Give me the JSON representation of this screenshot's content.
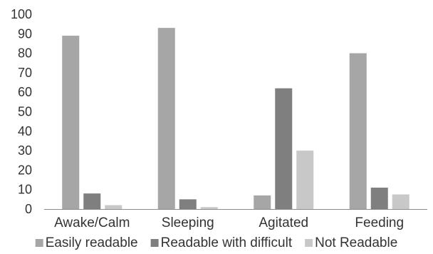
{
  "chart_data": {
    "type": "bar",
    "title": "",
    "xlabel": "",
    "ylabel": "",
    "ylim": [
      0,
      100
    ],
    "yticks": [
      0,
      10,
      20,
      30,
      40,
      50,
      60,
      70,
      80,
      90,
      100
    ],
    "grid": false,
    "legend_position": "bottom",
    "categories": [
      "Awake/Calm",
      "Sleeping",
      "Agitated",
      "Feeding"
    ],
    "series": [
      {
        "name": "Easily readable",
        "color": "#a6a6a6",
        "values": [
          89,
          93,
          7,
          80
        ]
      },
      {
        "name": "Readable with difficult",
        "color": "#7f7f7f",
        "values": [
          8,
          5,
          62,
          11
        ]
      },
      {
        "name": "Not Readable",
        "color": "#c8c8c8",
        "values": [
          2,
          1,
          30,
          7.5
        ]
      }
    ]
  }
}
